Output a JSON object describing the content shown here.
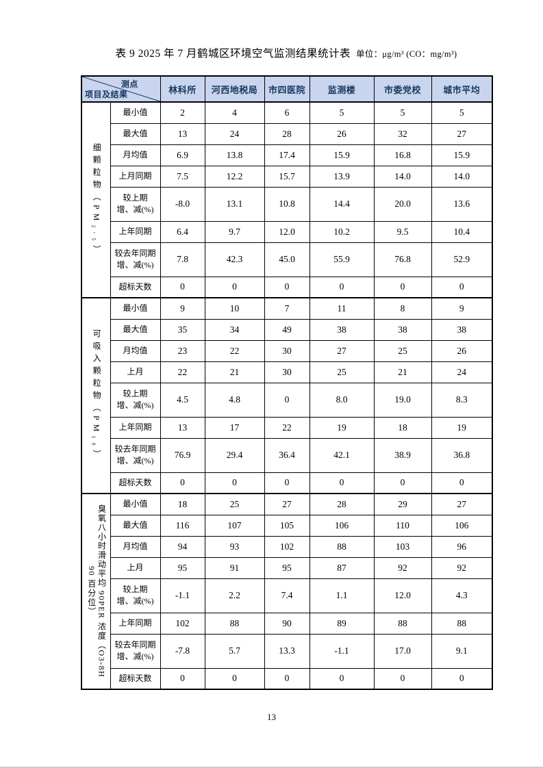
{
  "title": {
    "text": "表 9  2025 年 7 月鹤城区环境空气监测结果统计表",
    "unit": "单位：μg/m³ (CO：mg/m³)"
  },
  "page": {
    "number": "13"
  },
  "colors": {
    "header_bg": "#c9d5ee",
    "header_text": "#17365d",
    "border": "#000000"
  },
  "table": {
    "corner": {
      "top_right": "测点",
      "bottom_left": "项目及结果"
    },
    "columns": [
      "林科所",
      "河西地税局",
      "市四医院",
      "监测楼",
      "市委党校",
      "城市平均"
    ],
    "sections": [
      {
        "group_lines": [
          "细颗粒物（PM₂.₅）"
        ],
        "rows": [
          {
            "label": "最小值",
            "values": [
              "2",
              "4",
              "6",
              "5",
              "5",
              "5"
            ]
          },
          {
            "label": "最大值",
            "values": [
              "13",
              "24",
              "28",
              "26",
              "32",
              "27"
            ]
          },
          {
            "label": "月均值",
            "values": [
              "6.9",
              "13.8",
              "17.4",
              "15.9",
              "16.8",
              "15.9"
            ]
          },
          {
            "label": "上月同期",
            "values": [
              "7.5",
              "12.2",
              "15.7",
              "13.9",
              "14.0",
              "14.0"
            ]
          },
          {
            "label": "较上期\n增、减(%)",
            "values": [
              "-8.0",
              "13.1",
              "10.8",
              "14.4",
              "20.0",
              "13.6"
            ]
          },
          {
            "label": "上年同期",
            "values": [
              "6.4",
              "9.7",
              "12.0",
              "10.2",
              "9.5",
              "10.4"
            ]
          },
          {
            "label": "较去年同期\n增、减(%)",
            "values": [
              "7.8",
              "42.3",
              "45.0",
              "55.9",
              "76.8",
              "52.9"
            ]
          },
          {
            "label": "超标天数",
            "values": [
              "0",
              "0",
              "0",
              "0",
              "0",
              "0"
            ]
          }
        ]
      },
      {
        "group_lines": [
          "可吸入颗粒物（PM₁₀）"
        ],
        "rows": [
          {
            "label": "最小值",
            "values": [
              "9",
              "10",
              "7",
              "11",
              "8",
              "9"
            ]
          },
          {
            "label": "最大值",
            "values": [
              "35",
              "34",
              "49",
              "38",
              "38",
              "38"
            ]
          },
          {
            "label": "月均值",
            "values": [
              "23",
              "22",
              "30",
              "27",
              "25",
              "26"
            ]
          },
          {
            "label": "上月",
            "values": [
              "22",
              "21",
              "30",
              "25",
              "21",
              "24"
            ]
          },
          {
            "label": "较上期\n增、减(%)",
            "values": [
              "4.5",
              "4.8",
              "0",
              "8.0",
              "19.0",
              "8.3"
            ]
          },
          {
            "label": "上年同期",
            "values": [
              "13",
              "17",
              "22",
              "19",
              "18",
              "19"
            ]
          },
          {
            "label": "较去年同期\n增、减(%)",
            "values": [
              "76.9",
              "29.4",
              "36.4",
              "42.1",
              "38.9",
              "36.8"
            ]
          },
          {
            "label": "超标天数",
            "values": [
              "0",
              "0",
              "0",
              "0",
              "0",
              "0"
            ]
          }
        ]
      },
      {
        "group_lines": [
          "臭氧八小时滑动平均 90PER 浓度（O3-8H",
          "90 百分位）"
        ],
        "rows": [
          {
            "label": "最小值",
            "values": [
              "18",
              "25",
              "27",
              "28",
              "29",
              "27"
            ]
          },
          {
            "label": "最大值",
            "values": [
              "116",
              "107",
              "105",
              "106",
              "110",
              "106"
            ]
          },
          {
            "label": "月均值",
            "values": [
              "94",
              "93",
              "102",
              "88",
              "103",
              "96"
            ]
          },
          {
            "label": "上月",
            "values": [
              "95",
              "91",
              "95",
              "87",
              "92",
              "92"
            ]
          },
          {
            "label": "较上期\n增、减(%)",
            "values": [
              "-1.1",
              "2.2",
              "7.4",
              "1.1",
              "12.0",
              "4.3"
            ]
          },
          {
            "label": "上年同期",
            "values": [
              "102",
              "88",
              "90",
              "89",
              "88",
              "88"
            ]
          },
          {
            "label": "较去年同期\n增、减(%)",
            "values": [
              "-7.8",
              "5.7",
              "13.3",
              "-1.1",
              "17.0",
              "9.1"
            ]
          },
          {
            "label": "超标天数",
            "values": [
              "0",
              "0",
              "0",
              "0",
              "0",
              "0"
            ]
          }
        ]
      }
    ]
  }
}
